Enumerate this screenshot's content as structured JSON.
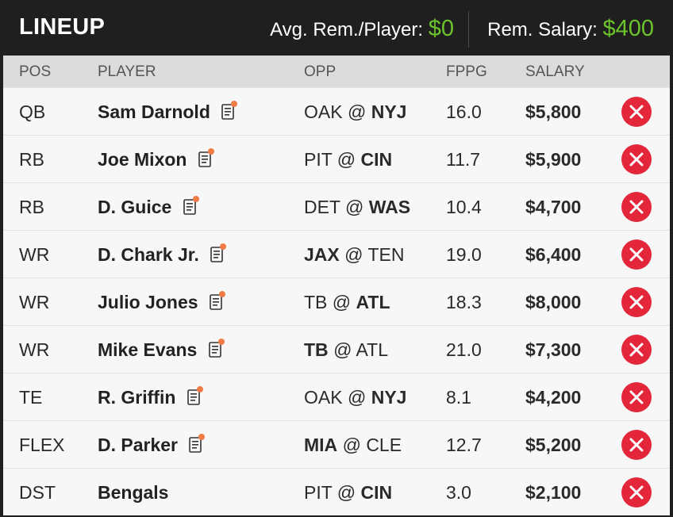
{
  "header": {
    "title": "LINEUP",
    "avg_label": "Avg. Rem./Player:",
    "avg_value": "$0",
    "rem_label": "Rem. Salary:",
    "rem_value": "$400"
  },
  "columns": {
    "pos": "POS",
    "player": "PLAYER",
    "opp": "OPP",
    "fppg": "FPPG",
    "salary": "SALARY"
  },
  "colors": {
    "accent_green": "#6cc32b",
    "remove_red": "#e3263a",
    "note_dot": "#f07b45"
  },
  "rows": [
    {
      "pos": "QB",
      "player": "Sam Darnold",
      "has_note": true,
      "opp_away": "OAK",
      "opp_at": "@",
      "opp_home": "NYJ",
      "bold": "home",
      "fppg": "16.0",
      "salary": "$5,800"
    },
    {
      "pos": "RB",
      "player": "Joe Mixon",
      "has_note": true,
      "opp_away": "PIT",
      "opp_at": "@",
      "opp_home": "CIN",
      "bold": "home",
      "fppg": "11.7",
      "salary": "$5,900"
    },
    {
      "pos": "RB",
      "player": "D. Guice",
      "has_note": true,
      "opp_away": "DET",
      "opp_at": "@",
      "opp_home": "WAS",
      "bold": "home",
      "fppg": "10.4",
      "salary": "$4,700"
    },
    {
      "pos": "WR",
      "player": "D. Chark Jr.",
      "has_note": true,
      "opp_away": "JAX",
      "opp_at": "@",
      "opp_home": "TEN",
      "bold": "away",
      "fppg": "19.0",
      "salary": "$6,400"
    },
    {
      "pos": "WR",
      "player": "Julio Jones",
      "has_note": true,
      "opp_away": "TB",
      "opp_at": "@",
      "opp_home": "ATL",
      "bold": "home",
      "fppg": "18.3",
      "salary": "$8,000"
    },
    {
      "pos": "WR",
      "player": "Mike Evans",
      "has_note": true,
      "opp_away": "TB",
      "opp_at": "@",
      "opp_home": "ATL",
      "bold": "away",
      "fppg": "21.0",
      "salary": "$7,300"
    },
    {
      "pos": "TE",
      "player": "R. Griffin",
      "has_note": true,
      "opp_away": "OAK",
      "opp_at": "@",
      "opp_home": "NYJ",
      "bold": "home",
      "fppg": "8.1",
      "salary": "$4,200"
    },
    {
      "pos": "FLEX",
      "player": "D. Parker",
      "has_note": true,
      "opp_away": "MIA",
      "opp_at": "@",
      "opp_home": "CLE",
      "bold": "away",
      "fppg": "12.7",
      "salary": "$5,200"
    },
    {
      "pos": "DST",
      "player": "Bengals",
      "has_note": false,
      "opp_away": "PIT",
      "opp_at": "@",
      "opp_home": "CIN",
      "bold": "home",
      "fppg": "3.0",
      "salary": "$2,100"
    }
  ]
}
